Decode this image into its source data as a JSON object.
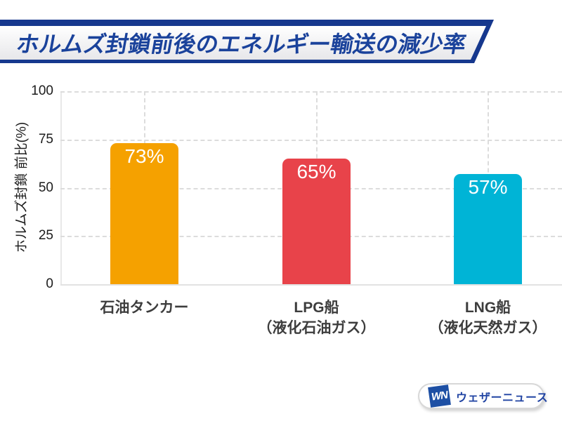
{
  "banner": {
    "title": "ホルムズ封鎖前後のエネルギー輸送の減少率",
    "bar_color": "#16388E",
    "text_color": "#1A429B"
  },
  "chart_data": {
    "type": "bar",
    "title": "ホルムズ封鎖前後のエネルギー輸送の減少率",
    "ylabel": "ホルムズ封鎖 前比(%)",
    "ylim": [
      0,
      100
    ],
    "yticks": [
      0,
      25,
      50,
      75,
      100
    ],
    "grid": "dashed horizontal lines at ticks; dashed vertical lines at category centers; solid baseline",
    "legend": "none",
    "categories": [
      {
        "lines": [
          "石油タンカー",
          ""
        ]
      },
      {
        "lines": [
          "LPG船",
          "（液化石油ガス）"
        ]
      },
      {
        "lines": [
          "LNG船",
          "（液化天然ガス）"
        ]
      }
    ],
    "values": [
      73,
      65,
      57
    ],
    "bar_labels": [
      "73%",
      "65%",
      "57%"
    ],
    "bar_colors": [
      "#F5A100",
      "#E8434A",
      "#00B4D6"
    ]
  },
  "footer": {
    "logo_mark": "WN",
    "logo_text": "ウェザーニュース",
    "logo_mark_color": "#1D4FA4",
    "logo_text_color": "#2144A3"
  },
  "colors": {
    "background": "#FFFFFF",
    "gridline": "#DCDCDC",
    "axis_text": "#1C1C1C",
    "category_text": "#3D3D3D"
  }
}
